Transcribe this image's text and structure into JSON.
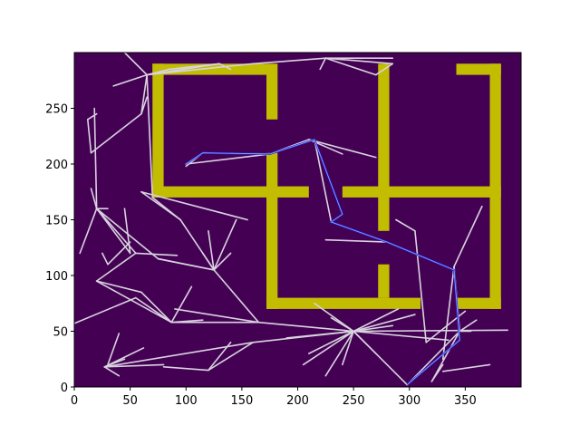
{
  "chart_data": {
    "type": "scatter",
    "title": "",
    "xlabel": "",
    "ylabel": "",
    "xlim": [
      0,
      400
    ],
    "ylim": [
      0,
      300
    ],
    "grid": false,
    "x_ticks": [
      0,
      50,
      100,
      150,
      200,
      250,
      300,
      350
    ],
    "y_ticks": [
      0,
      50,
      100,
      150,
      200,
      250
    ],
    "colors": {
      "background": "#440154",
      "walls": "#c2bd00",
      "tree_edges": "#d8d3de",
      "path_outer": "#1e23d8",
      "path_inner": "#9ca8e8"
    },
    "walls": [
      [
        70,
        172,
        280,
        290
      ],
      [
        70,
        80,
        170,
        290
      ],
      [
        172,
        182,
        240,
        290
      ],
      [
        272,
        282,
        140,
        290
      ],
      [
        342,
        382,
        280,
        290
      ],
      [
        372,
        382,
        70,
        290
      ],
      [
        70,
        210,
        170,
        180
      ],
      [
        240,
        382,
        170,
        180
      ],
      [
        172,
        182,
        70,
        210
      ],
      [
        272,
        282,
        80,
        110
      ],
      [
        172,
        310,
        70,
        80
      ],
      [
        342,
        382,
        70,
        80
      ]
    ],
    "tree_edges": [
      [
        [
          0,
          57
        ],
        [
          55,
          80
        ]
      ],
      [
        [
          55,
          80
        ],
        [
          87,
          58
        ]
      ],
      [
        [
          87,
          58
        ],
        [
          165,
          58
        ]
      ],
      [
        [
          165,
          58
        ],
        [
          250,
          50
        ]
      ],
      [
        [
          250,
          50
        ],
        [
          298,
          2
        ]
      ],
      [
        [
          250,
          50
        ],
        [
          388,
          51
        ]
      ],
      [
        [
          250,
          50
        ],
        [
          210,
          30
        ]
      ],
      [
        [
          250,
          50
        ],
        [
          230,
          62
        ]
      ],
      [
        [
          250,
          50
        ],
        [
          190,
          44
        ]
      ],
      [
        [
          250,
          50
        ],
        [
          270,
          30
        ]
      ],
      [
        [
          250,
          50
        ],
        [
          215,
          75
        ]
      ],
      [
        [
          250,
          50
        ],
        [
          335,
          42
        ]
      ],
      [
        [
          250,
          50
        ],
        [
          290,
          70
        ]
      ],
      [
        [
          250,
          50
        ],
        [
          240,
          20
        ]
      ],
      [
        [
          250,
          50
        ],
        [
          205,
          20
        ]
      ],
      [
        [
          250,
          50
        ],
        [
          160,
          40
        ]
      ],
      [
        [
          250,
          50
        ],
        [
          305,
          65
        ]
      ],
      [
        [
          250,
          50
        ],
        [
          285,
          55
        ]
      ],
      [
        [
          250,
          50
        ],
        [
          225,
          10
        ]
      ],
      [
        [
          298,
          2
        ],
        [
          345,
          50
        ]
      ],
      [
        [
          345,
          50
        ],
        [
          360,
          60
        ]
      ],
      [
        [
          345,
          50
        ],
        [
          320,
          5
        ]
      ],
      [
        [
          345,
          50
        ],
        [
          355,
          50
        ]
      ],
      [
        [
          320,
          5
        ],
        [
          330,
          20
        ]
      ],
      [
        [
          330,
          14
        ],
        [
          372,
          20
        ]
      ],
      [
        [
          345,
          50
        ],
        [
          340,
          108
        ]
      ],
      [
        [
          340,
          108
        ],
        [
          365,
          162
        ]
      ],
      [
        [
          340,
          108
        ],
        [
          330,
          25
        ]
      ],
      [
        [
          305,
          140
        ],
        [
          315,
          40
        ]
      ],
      [
        [
          305,
          140
        ],
        [
          288,
          150
        ]
      ],
      [
        [
          160,
          40
        ],
        [
          27,
          18
        ]
      ],
      [
        [
          160,
          40
        ],
        [
          120,
          15
        ]
      ],
      [
        [
          27,
          18
        ],
        [
          40,
          10
        ]
      ],
      [
        [
          27,
          18
        ],
        [
          45,
          25
        ]
      ],
      [
        [
          27,
          18
        ],
        [
          80,
          20
        ]
      ],
      [
        [
          27,
          18
        ],
        [
          62,
          35
        ]
      ],
      [
        [
          120,
          15
        ],
        [
          140,
          40
        ]
      ],
      [
        [
          120,
          15
        ],
        [
          80,
          18
        ]
      ],
      [
        [
          165,
          58
        ],
        [
          125,
          105
        ]
      ],
      [
        [
          165,
          58
        ],
        [
          90,
          70
        ]
      ],
      [
        [
          125,
          105
        ],
        [
          145,
          150
        ]
      ],
      [
        [
          125,
          105
        ],
        [
          75,
          115
        ]
      ],
      [
        [
          125,
          105
        ],
        [
          115,
          120
        ]
      ],
      [
        [
          125,
          105
        ],
        [
          140,
          120
        ]
      ],
      [
        [
          125,
          105
        ],
        [
          95,
          150
        ]
      ],
      [
        [
          125,
          105
        ],
        [
          120,
          140
        ]
      ],
      [
        [
          75,
          115
        ],
        [
          125,
          105
        ]
      ],
      [
        [
          75,
          115
        ],
        [
          20,
          160
        ]
      ],
      [
        [
          20,
          160
        ],
        [
          5,
          120
        ]
      ],
      [
        [
          20,
          160
        ],
        [
          30,
          160
        ]
      ],
      [
        [
          20,
          160
        ],
        [
          18,
          250
        ]
      ],
      [
        [
          20,
          160
        ],
        [
          15,
          178
        ]
      ],
      [
        [
          20,
          160
        ],
        [
          50,
          120
        ]
      ],
      [
        [
          20,
          160
        ],
        [
          55,
          120
        ]
      ],
      [
        [
          50,
          120
        ],
        [
          45,
          160
        ]
      ],
      [
        [
          30,
          110
        ],
        [
          50,
          130
        ]
      ],
      [
        [
          30,
          110
        ],
        [
          25,
          120
        ]
      ],
      [
        [
          55,
          120
        ],
        [
          92,
          118
        ]
      ],
      [
        [
          87,
          58
        ],
        [
          20,
          95
        ]
      ],
      [
        [
          20,
          95
        ],
        [
          60,
          85
        ]
      ],
      [
        [
          20,
          95
        ],
        [
          55,
          120
        ]
      ],
      [
        [
          87,
          58
        ],
        [
          105,
          90
        ]
      ],
      [
        [
          87,
          58
        ],
        [
          115,
          60
        ]
      ],
      [
        [
          87,
          58
        ],
        [
          60,
          85
        ]
      ],
      [
        [
          95,
          150
        ],
        [
          60,
          175
        ]
      ],
      [
        [
          95,
          150
        ],
        [
          70,
          170
        ]
      ],
      [
        [
          60,
          175
        ],
        [
          155,
          150
        ]
      ],
      [
        [
          70,
          170
        ],
        [
          65,
          280
        ]
      ],
      [
        [
          65,
          280
        ],
        [
          130,
          290
        ]
      ],
      [
        [
          65,
          280
        ],
        [
          45,
          300
        ]
      ],
      [
        [
          65,
          280
        ],
        [
          160,
          290
        ]
      ],
      [
        [
          65,
          280
        ],
        [
          35,
          270
        ]
      ],
      [
        [
          65,
          280
        ],
        [
          60,
          245
        ]
      ],
      [
        [
          60,
          245
        ],
        [
          15,
          210
        ]
      ],
      [
        [
          60,
          245
        ],
        [
          65,
          260
        ]
      ],
      [
        [
          15,
          210
        ],
        [
          12,
          240
        ]
      ],
      [
        [
          12,
          240
        ],
        [
          20,
          245
        ]
      ],
      [
        [
          65,
          280
        ],
        [
          85,
          285
        ]
      ],
      [
        [
          85,
          285
        ],
        [
          130,
          290
        ]
      ],
      [
        [
          130,
          290
        ],
        [
          140,
          285
        ]
      ],
      [
        [
          160,
          290
        ],
        [
          225,
          295
        ]
      ],
      [
        [
          225,
          295
        ],
        [
          285,
          290
        ]
      ],
      [
        [
          225,
          295
        ],
        [
          220,
          285
        ]
      ],
      [
        [
          225,
          295
        ],
        [
          285,
          295
        ]
      ],
      [
        [
          225,
          295
        ],
        [
          270,
          280
        ]
      ],
      [
        [
          270,
          280
        ],
        [
          285,
          290
        ]
      ],
      [
        [
          210,
          222
        ],
        [
          175,
          209
        ]
      ],
      [
        [
          210,
          222
        ],
        [
          240,
          209
        ]
      ],
      [
        [
          210,
          222
        ],
        [
          270,
          206
        ]
      ],
      [
        [
          175,
          209
        ],
        [
          100,
          200
        ]
      ],
      [
        [
          175,
          209
        ],
        [
          115,
          210
        ]
      ],
      [
        [
          115,
          210
        ],
        [
          100,
          198
        ]
      ],
      [
        [
          215,
          222
        ],
        [
          230,
          148
        ]
      ],
      [
        [
          230,
          148
        ],
        [
          280,
          130
        ]
      ],
      [
        [
          280,
          130
        ],
        [
          225,
          132
        ]
      ],
      [
        [
          280,
          130
        ],
        [
          340,
          105
        ]
      ],
      [
        [
          340,
          105
        ],
        [
          345,
          42
        ]
      ],
      [
        [
          315,
          40
        ],
        [
          350,
          68
        ]
      ],
      [
        [
          40,
          48
        ],
        [
          30,
          20
        ]
      ]
    ],
    "path": [
      [
        100,
        200
      ],
      [
        115,
        210
      ],
      [
        175,
        209
      ],
      [
        215,
        222
      ],
      [
        240,
        155
      ],
      [
        230,
        148
      ],
      [
        280,
        130
      ],
      [
        340,
        105
      ],
      [
        345,
        42
      ],
      [
        298,
        2
      ]
    ]
  }
}
